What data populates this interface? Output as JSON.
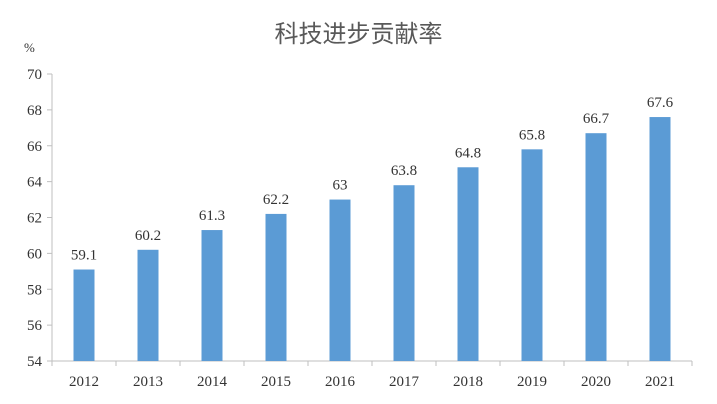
{
  "chart_data": {
    "type": "bar",
    "title": "科技进步贡献率",
    "ylabel": "%",
    "xlabel": "",
    "categories": [
      "2012",
      "2013",
      "2014",
      "2015",
      "2016",
      "2017",
      "2018",
      "2019",
      "2020",
      "2021"
    ],
    "values": [
      59.1,
      60.2,
      61.3,
      62.2,
      63,
      63.8,
      64.8,
      65.8,
      66.7,
      67.6
    ],
    "value_labels": [
      "59.1",
      "60.2",
      "61.3",
      "62.2",
      "63",
      "63.8",
      "64.8",
      "65.8",
      "66.7",
      "67.6"
    ],
    "ylim": [
      54,
      70
    ],
    "yticks": [
      54,
      56,
      58,
      60,
      62,
      64,
      66,
      68,
      70
    ],
    "grid": false,
    "legend": "none",
    "bar_color": "#5b9bd5"
  }
}
